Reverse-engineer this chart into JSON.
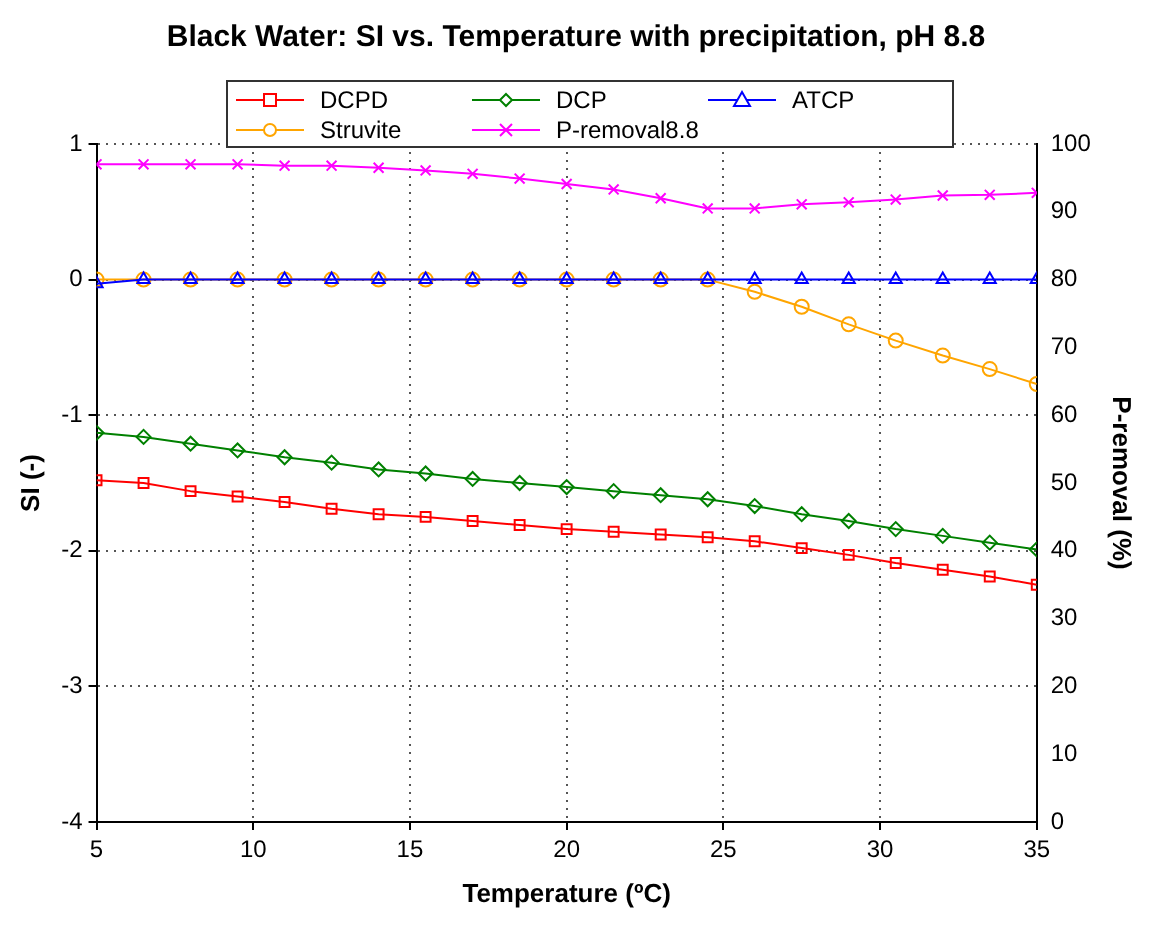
{
  "chart_data": {
    "type": "line",
    "title": "Black Water: SI vs. Temperature with precipitation, pH 8.8",
    "xlabel": "Temperature (ºC)",
    "ylabel": "SI (-)",
    "y2label": "P-removal (%)",
    "x": [
      5,
      6.5,
      8,
      9.5,
      11,
      12.5,
      14,
      15.5,
      17,
      18.5,
      20,
      21.5,
      23,
      24.5,
      26,
      27.5,
      29,
      30.5,
      32,
      33.5,
      35
    ],
    "xlim": [
      5,
      35
    ],
    "xticks": [
      5,
      10,
      15,
      20,
      25,
      30,
      35
    ],
    "ylim": [
      -4,
      1
    ],
    "yticks": [
      -4,
      -3,
      -2,
      -1,
      0,
      1
    ],
    "y2lim": [
      0,
      100
    ],
    "y2ticks": [
      0,
      10,
      20,
      30,
      40,
      50,
      60,
      70,
      80,
      90,
      100
    ],
    "grid": true,
    "legend": "top",
    "line_style": "solid",
    "series": [
      {
        "name": "DCPD",
        "color": "#ff0000",
        "marker": "square",
        "values": [
          -1.48,
          -1.5,
          -1.56,
          -1.6,
          -1.64,
          -1.69,
          -1.73,
          -1.75,
          -1.78,
          -1.81,
          -1.84,
          -1.86,
          -1.88,
          -1.9,
          -1.93,
          -1.98,
          -2.03,
          -2.09,
          -2.14,
          -2.19,
          -2.25
        ]
      },
      {
        "name": "DCP",
        "color": "#008000",
        "marker": "diamond",
        "values": [
          -1.13,
          -1.16,
          -1.21,
          -1.26,
          -1.31,
          -1.35,
          -1.4,
          -1.43,
          -1.47,
          -1.5,
          -1.53,
          -1.56,
          -1.59,
          -1.62,
          -1.67,
          -1.73,
          -1.78,
          -1.84,
          -1.89,
          -1.94,
          -1.99
        ]
      },
      {
        "name": "ATCP",
        "color": "#0000ff",
        "marker": "triangle",
        "values": [
          -0.03,
          0,
          0,
          0,
          0,
          0,
          0,
          0,
          0,
          0,
          0,
          0,
          0,
          0,
          0,
          0,
          0,
          0,
          0,
          0,
          0
        ]
      },
      {
        "name": "Struvite",
        "color": "#ffa500",
        "marker": "circle",
        "values": [
          0,
          0,
          0,
          0,
          0,
          0,
          0,
          0,
          0,
          0,
          0,
          0,
          0,
          0,
          -0.09,
          -0.2,
          -0.33,
          -0.45,
          -0.56,
          -0.66,
          -0.77
        ]
      },
      {
        "name": "P-removal8.8",
        "color": "#ff00ff",
        "marker": "cross",
        "axis": "y2",
        "values": [
          97,
          97,
          97,
          97,
          96.8,
          96.8,
          96.5,
          96.1,
          95.6,
          94.9,
          94.1,
          93.3,
          92,
          90.5,
          90.5,
          91.1,
          91.4,
          91.8,
          92.4,
          92.5,
          92.8
        ]
      }
    ]
  }
}
